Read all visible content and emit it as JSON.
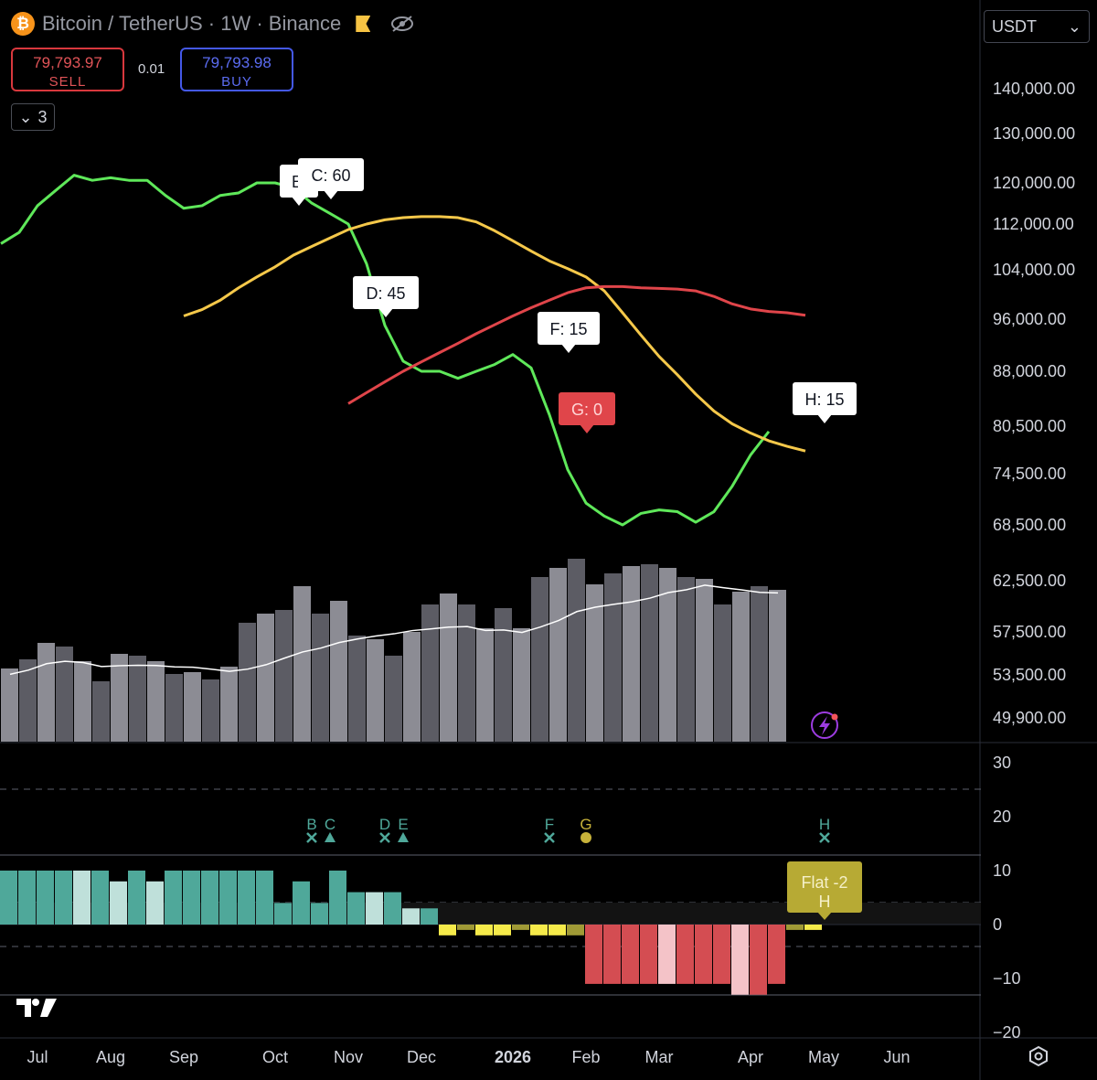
{
  "header": {
    "symbol": "Bitcoin / TetherUS · 1W · Binance",
    "coin_icon": "bitcoin-icon",
    "sell_price": "79,793.97",
    "sell_label": "SELL",
    "buy_price": "79,793.98",
    "buy_label": "BUY",
    "spread": "0.01",
    "indicators_count": "3",
    "currency": "USDT"
  },
  "colors": {
    "fast_ma": "#5fe85a",
    "mid_ma": "#f5c84a",
    "slow_ma": "#e0454a",
    "volume_ma": "#ffffff",
    "hist_teal": "#4fa89a",
    "hist_teal_light": "#bfe0da",
    "hist_yellow": "#f5ea4a",
    "hist_olive": "#a09a36",
    "hist_red": "#d44d52",
    "hist_pink": "#f4c3c8"
  },
  "chart_data": [
    {
      "type": "line",
      "x_labels": [
        "Jul",
        "Aug",
        "Sep",
        "Oct",
        "Nov",
        "Dec",
        "2026",
        "Feb",
        "Mar",
        "Apr",
        "May",
        "Jun"
      ],
      "y_ticks": [
        "140,000.00",
        "130,000.00",
        "120,000.00",
        "112,000.00",
        "104,000.00",
        "96,000.00",
        "88,000.00",
        "80,500.00",
        "74,500.00",
        "68,500.00",
        "62,500.00",
        "57,500.00",
        "53,500.00",
        "49,900.00"
      ],
      "scale": "log",
      "series": [
        {
          "values": [
            108500,
            110500,
            115500,
            118500,
            121500,
            120500,
            121000,
            120500,
            120500,
            117500,
            115000,
            115500,
            117500,
            118000,
            120000,
            120000,
            119000,
            116000,
            114000,
            112000,
            105000,
            95000,
            89500,
            88000,
            88000,
            87000,
            88000,
            89000,
            90500,
            88500,
            82000,
            75000,
            71000,
            69500,
            68500,
            69800,
            70200,
            70000,
            68800,
            70000,
            73000,
            76800,
            79800
          ]
        },
        {
          "values": [
            96500,
            97500,
            99000,
            101000,
            102800,
            104500,
            106500,
            108000,
            109500,
            111000,
            112000,
            112800,
            113200,
            113400,
            113400,
            113200,
            112400,
            110800,
            109000,
            107200,
            105500,
            104200,
            102800,
            100500,
            97000,
            93500,
            90200,
            87500,
            84800,
            82500,
            80800,
            79600,
            78600,
            77900,
            77300
          ]
        },
        {
          "values": [
            83500,
            85000,
            86500,
            88000,
            89400,
            90800,
            92200,
            93700,
            95100,
            96500,
            97800,
            99000,
            100200,
            101000,
            101200,
            101200,
            101000,
            100900,
            100800,
            100500,
            99600,
            98400,
            97600,
            97200,
            97000,
            96600
          ]
        }
      ],
      "annotations": [
        {
          "label": "B",
          "text": "E",
          "kind": "light"
        },
        {
          "label": "C",
          "text": "C: 60",
          "kind": "light"
        },
        {
          "label": "D",
          "text": "D: 45",
          "kind": "light"
        },
        {
          "label": "F",
          "text": "F: 15",
          "kind": "light"
        },
        {
          "label": "G",
          "text": "G: 0",
          "kind": "red"
        },
        {
          "label": "H",
          "text": "H: 15",
          "kind": "light"
        }
      ]
    },
    {
      "type": "bar",
      "volume": [
        40,
        45,
        54,
        52,
        44,
        33,
        48,
        47,
        44,
        37,
        38,
        34,
        41,
        65,
        70,
        72,
        85,
        70,
        77,
        58,
        56,
        47,
        60,
        75,
        81,
        75,
        62,
        73,
        62,
        90,
        95,
        100,
        86,
        92,
        96,
        97,
        95,
        90,
        89,
        75,
        82,
        85,
        83
      ],
      "volume_hue": [
        "#8c8c94",
        "#5c5c64"
      ]
    },
    {
      "type": "bar",
      "y_ticks": [
        "30",
        "20",
        "10",
        "0",
        "−10",
        "−20"
      ],
      "ylim": [
        -20,
        30
      ],
      "values": [
        10,
        10,
        10,
        10,
        10,
        10,
        8,
        10,
        8,
        10,
        10,
        10,
        10,
        10,
        10,
        4,
        8,
        4,
        10,
        6,
        6,
        6,
        3,
        3,
        -2,
        -1,
        -2,
        -2,
        -1,
        -2,
        -2,
        -2,
        -11,
        -11,
        -11,
        -11,
        -11,
        -11,
        -11,
        -11,
        -13,
        -13,
        -11,
        -1,
        -1
      ],
      "signals": [
        {
          "label": "B",
          "marker": "cross"
        },
        {
          "label": "C",
          "marker": "triangle"
        },
        {
          "label": "D",
          "marker": "cross"
        },
        {
          "label": "E",
          "marker": "triangle"
        },
        {
          "label": "F",
          "marker": "cross"
        },
        {
          "label": "G",
          "marker": "dot"
        },
        {
          "label": "H",
          "marker": "cross"
        }
      ],
      "flat_label_line1": "Flat -2",
      "flat_label_line2": "H"
    }
  ]
}
